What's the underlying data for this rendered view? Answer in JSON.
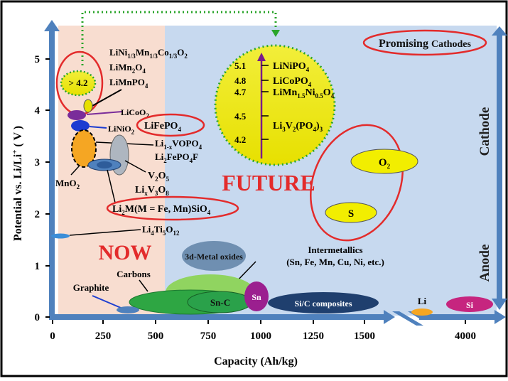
{
  "axes": {
    "xlabel": "Capacity (Ah/kg)",
    "ylabel_parts": [
      "Potential vs.  Li/Li",
      "+",
      " ( V )"
    ],
    "xticks": [
      "0",
      "250",
      "500",
      "750",
      "1000",
      "1250",
      "1500",
      "4000"
    ],
    "yticks": [
      "0",
      "1",
      "2",
      "3",
      "4",
      "5"
    ]
  },
  "regions": {
    "now": "NOW",
    "future": "FUTURE",
    "cathode": "Cathode",
    "anode": "Anode"
  },
  "boxes": {
    "promising": [
      "Promising ",
      "Cathodes"
    ]
  },
  "labels": {
    "gt42": "> 4.2",
    "nmc": [
      [
        "LiNi",
        ""
      ],
      [
        "1/3",
        "sub"
      ],
      [
        "Mn",
        ""
      ],
      [
        "1/3",
        "sub"
      ],
      [
        "Co",
        ""
      ],
      [
        "1/3",
        "sub"
      ],
      [
        "O",
        ""
      ],
      [
        "2",
        "sub"
      ]
    ],
    "limn2o4": [
      [
        "LiMn",
        ""
      ],
      [
        "2",
        "sub"
      ],
      [
        "O",
        ""
      ],
      [
        "4",
        "sub"
      ]
    ],
    "limnpo4": [
      [
        "LiMnPO",
        ""
      ],
      [
        "4",
        "sub"
      ]
    ],
    "licoo2": [
      [
        "LiCoO",
        ""
      ],
      [
        "2",
        "sub"
      ]
    ],
    "linio2": [
      [
        "LiNiO",
        ""
      ],
      [
        "2",
        "sub"
      ]
    ],
    "lifepo4": [
      [
        "LiFePO",
        ""
      ],
      [
        "4",
        "sub"
      ]
    ],
    "livopo4": [
      [
        "Li",
        ""
      ],
      [
        "1-x",
        "sub"
      ],
      [
        "VOPO",
        ""
      ],
      [
        "4",
        "sub"
      ]
    ],
    "li2fepo4f": [
      [
        "Li",
        ""
      ],
      [
        "2",
        "sub"
      ],
      [
        "FePO",
        ""
      ],
      [
        "4",
        "sub"
      ],
      [
        "F",
        ""
      ]
    ],
    "v2o5": [
      [
        "V",
        ""
      ],
      [
        "2",
        "sub"
      ],
      [
        "O",
        ""
      ],
      [
        "5",
        "sub"
      ]
    ],
    "lixv3o8": [
      [
        "Li",
        ""
      ],
      [
        "x",
        "sub"
      ],
      [
        "V",
        ""
      ],
      [
        "3",
        "sub"
      ],
      [
        "O",
        ""
      ],
      [
        "8",
        "sub"
      ]
    ],
    "mno2": [
      [
        "MnO",
        ""
      ],
      [
        "2",
        "sub"
      ]
    ],
    "li2msio4": [
      [
        "Li",
        ""
      ],
      [
        "2",
        "sub"
      ],
      [
        "M(M = Fe, Mn)SiO",
        ""
      ],
      [
        "4",
        "sub"
      ]
    ],
    "li4ti5o12": [
      [
        "Li",
        ""
      ],
      [
        "4",
        "sub"
      ],
      [
        "Ti",
        ""
      ],
      [
        "5",
        "sub"
      ],
      [
        "O",
        ""
      ],
      [
        "12",
        "sub"
      ]
    ],
    "metal_oxides": "3d-Metal oxides",
    "intermetallics_1": "Intermetallics",
    "intermetallics_2": "(Sn, Fe, Mn, Cu, Ni, etc.)",
    "carbons": "Carbons",
    "graphite": "Graphite",
    "snc": "Sn-C",
    "sn": "Sn",
    "sic": "Si/C composites",
    "li": "Li",
    "si": "Si",
    "o2": [
      [
        "O",
        ""
      ],
      [
        "2",
        "sub"
      ]
    ],
    "s": "S"
  },
  "future_list": [
    {
      "v": "5.1",
      "f": [
        [
          "LiNiPO",
          ""
        ],
        [
          "4",
          "sub"
        ]
      ]
    },
    {
      "v": "4.8",
      "f": [
        [
          "LiCoPO",
          ""
        ],
        [
          "4",
          "sub"
        ]
      ]
    },
    {
      "v": "4.7",
      "f": [
        [
          "LiMn",
          ""
        ],
        [
          "1.5",
          "sub"
        ],
        [
          "Ni",
          ""
        ],
        [
          "0.5",
          "sub"
        ],
        [
          "O",
          ""
        ],
        [
          "4",
          "sub"
        ]
      ]
    },
    {
      "v": "4.5",
      "f": []
    },
    {
      "v": "4.2",
      "f": []
    }
  ],
  "future_li3v2": [
    [
      "Li",
      ""
    ],
    [
      "3",
      "sub"
    ],
    [
      "V",
      ""
    ],
    [
      "2",
      "sub"
    ],
    [
      "(PO",
      ""
    ],
    [
      "4",
      "sub"
    ],
    [
      ")",
      ""
    ],
    [
      "3",
      "sub"
    ]
  ],
  "colors": {
    "now_bg": "#f8ddd0",
    "future_bg": "#c7d9ef",
    "axis_arrow": "#4f81bd",
    "highlight": "#e8e200",
    "red": "#e32b2b",
    "green": "#38b449",
    "purple": "#9b1f8f",
    "navy": "#1f3f6e",
    "orange": "#f5a623",
    "magenta": "#c6257f"
  }
}
